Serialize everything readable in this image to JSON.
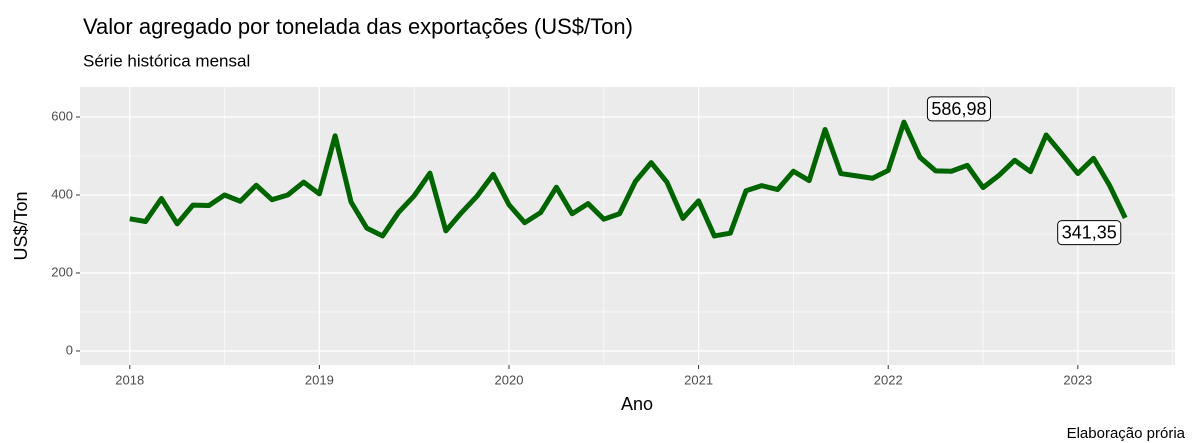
{
  "chart_data": {
    "type": "line",
    "title": "Valor agregado por tonelada das exportações (US$/Ton)",
    "subtitle": "Série histórica mensal",
    "x_label": "Ano",
    "y_label": "US$/Ton",
    "caption": "Elaboração prória",
    "x": [
      2018,
      2018.083,
      2018.167,
      2018.25,
      2018.333,
      2018.417,
      2018.5,
      2018.583,
      2018.667,
      2018.75,
      2018.833,
      2018.917,
      2019,
      2019.083,
      2019.167,
      2019.25,
      2019.333,
      2019.417,
      2019.5,
      2019.583,
      2019.667,
      2019.75,
      2019.833,
      2019.917,
      2020,
      2020.083,
      2020.167,
      2020.25,
      2020.333,
      2020.417,
      2020.5,
      2020.583,
      2020.667,
      2020.75,
      2020.833,
      2020.917,
      2021,
      2021.083,
      2021.167,
      2021.25,
      2021.333,
      2021.417,
      2021.5,
      2021.583,
      2021.667,
      2021.75,
      2021.833,
      2021.917,
      2022,
      2022.083,
      2022.167,
      2022.25,
      2022.333,
      2022.417,
      2022.5,
      2022.583,
      2022.667,
      2022.75,
      2022.833,
      2022.917,
      2023,
      2023.083,
      2023.167,
      2023.25
    ],
    "series": [
      {
        "name": "US$/Ton",
        "color": "#006400",
        "values": [
          339,
          332,
          391,
          326,
          374,
          373,
          400,
          384,
          425,
          388,
          400,
          433,
          403,
          552,
          382,
          315,
          295,
          355,
          398,
          456,
          308,
          355,
          398,
          453,
          375,
          329,
          355,
          420,
          352,
          378,
          338,
          352,
          435,
          483,
          433,
          340,
          385,
          295,
          302,
          411,
          424,
          414,
          461,
          437,
          568,
          455,
          449,
          443,
          463,
          586.98,
          497,
          462,
          461,
          476,
          419,
          450,
          489,
          460,
          554,
          505,
          455,
          494,
          425,
          341.35
        ],
        "value_labels": [
          null,
          null,
          null,
          null,
          null,
          null,
          null,
          null,
          null,
          null,
          null,
          null,
          null,
          null,
          null,
          null,
          null,
          null,
          null,
          null,
          null,
          null,
          null,
          null,
          null,
          null,
          null,
          null,
          null,
          null,
          null,
          null,
          null,
          null,
          null,
          null,
          null,
          null,
          null,
          null,
          null,
          null,
          null,
          null,
          null,
          null,
          null,
          null,
          null,
          "586,98",
          null,
          null,
          null,
          null,
          null,
          null,
          null,
          null,
          null,
          null,
          null,
          null,
          null,
          "341,35"
        ]
      }
    ],
    "xlim": [
      2017.7375,
      2023.5125
    ],
    "xticks": [
      2018,
      2019,
      2020,
      2021,
      2022,
      2023
    ],
    "ylim": [
      -36,
      677
    ],
    "yticks": [
      0,
      200,
      400,
      600
    ],
    "grid": true
  }
}
